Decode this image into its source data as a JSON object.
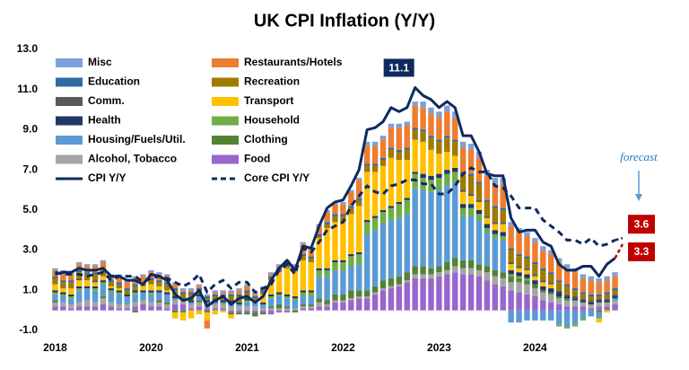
{
  "chart_data": {
    "type": "stacked-bar",
    "title": "UK CPI Inflation (Y/Y)",
    "categories": [
      "2018",
      null,
      null,
      null,
      null,
      null,
      null,
      null,
      null,
      null,
      null,
      null,
      "2020",
      null,
      null,
      null,
      null,
      null,
      null,
      null,
      null,
      null,
      null,
      null,
      "2021",
      null,
      null,
      null,
      null,
      null,
      null,
      null,
      null,
      null,
      null,
      null,
      "2022",
      null,
      null,
      null,
      null,
      null,
      null,
      null,
      null,
      null,
      null,
      null,
      "2023",
      null,
      null,
      null,
      null,
      null,
      null,
      null,
      null,
      null,
      null,
      null,
      "2024",
      null,
      null,
      null,
      null,
      null,
      null,
      null,
      null,
      null,
      null
    ],
    "ylim": [
      -1,
      13
    ],
    "yticks": [
      {
        "value": -1,
        "label": "-1.0"
      },
      {
        "value": 1,
        "label": "1.0"
      },
      {
        "value": 3,
        "label": "3.0"
      },
      {
        "value": 5,
        "label": "5.0"
      },
      {
        "value": 7,
        "label": "7.0"
      },
      {
        "value": 9,
        "label": "9.0"
      },
      {
        "value": 11,
        "label": "11.0"
      },
      {
        "value": 13,
        "label": "13.0"
      }
    ],
    "forecast_label": "forecast",
    "peak_index": 45,
    "series": [
      {
        "name": "Food",
        "color": "#9966cc",
        "values": [
          0.2,
          0.2,
          0.1,
          0.2,
          0.2,
          0.2,
          0.3,
          0.2,
          0.1,
          0.1,
          0.2,
          0.3,
          0.2,
          0.2,
          0.1,
          0.3,
          0.3,
          0.1,
          0.2,
          0.1,
          0.1,
          0.1,
          -0.1,
          -0.1,
          -0.1,
          -0.1,
          -0.1,
          -0.2,
          -0.1,
          -0.1,
          0,
          0.1,
          0.1,
          0.2,
          0.2,
          0.4,
          0.4,
          0.5,
          0.6,
          0.6,
          0.8,
          1.0,
          1.1,
          1.2,
          1.4,
          1.6,
          1.6,
          1.6,
          1.7,
          1.8,
          1.9,
          1.8,
          1.8,
          1.7,
          1.5,
          1.3,
          1.2,
          1.0,
          0.9,
          0.8,
          0.7,
          0.5,
          0.4,
          0.3,
          0.2,
          0.2,
          0.2,
          0.1,
          0.2,
          0.2,
          0.3
        ]
      },
      {
        "name": "Alcohol, Tobacco",
        "color": "#a5a5a5",
        "values": [
          0.2,
          0.2,
          0.2,
          0.2,
          0.3,
          0.2,
          0.3,
          0.2,
          0.2,
          0.2,
          0.2,
          0.2,
          0.2,
          0.2,
          0.2,
          0.2,
          0.2,
          0.2,
          0.2,
          0.2,
          0.2,
          0.2,
          0.2,
          0.2,
          0.2,
          0.2,
          0.1,
          0.1,
          0.1,
          0.1,
          0.1,
          0.1,
          0.1,
          0.2,
          0.1,
          0.1,
          0.1,
          0.1,
          0.1,
          0.1,
          0.1,
          0.1,
          0.1,
          0.1,
          0.1,
          0.2,
          0.2,
          0.2,
          0.2,
          0.2,
          0.3,
          0.3,
          0.3,
          0.3,
          0.4,
          0.4,
          0.4,
          0.4,
          0.5,
          0.5,
          0.4,
          0.4,
          0.4,
          0.3,
          0.3,
          0.3,
          0.2,
          0.2,
          0.2,
          0.2,
          0.2
        ]
      },
      {
        "name": "Clothing",
        "color": "#548235",
        "values": [
          0.1,
          0,
          0,
          0,
          0,
          0,
          0.1,
          0,
          0,
          0,
          -0.1,
          0,
          0,
          0.1,
          0.1,
          -0.1,
          -0.1,
          0,
          0.1,
          -0.1,
          0,
          0,
          -0.1,
          -0.1,
          -0.1,
          -0.2,
          -0.1,
          0.1,
          0.2,
          0.1,
          -0.1,
          0.1,
          0.1,
          0.2,
          0.2,
          0.3,
          0.3,
          0.4,
          0.3,
          0.3,
          0.3,
          0.4,
          0.4,
          0.4,
          0.4,
          0.4,
          0.4,
          0.3,
          0.3,
          0.4,
          0.4,
          0.4,
          0.4,
          0.3,
          0.3,
          0.3,
          0.3,
          0.3,
          0.2,
          0.2,
          0.2,
          0.1,
          0.1,
          0.1,
          0.1,
          0,
          0,
          0,
          -0.1,
          0,
          0
        ]
      },
      {
        "name": "Housing/Fuels/Util.",
        "color": "#5b9bd5",
        "values": [
          0.3,
          0.3,
          0.3,
          0.6,
          0.6,
          0.6,
          0.6,
          0.5,
          0.5,
          0.4,
          0.4,
          0.4,
          0.4,
          0.4,
          0.4,
          0.1,
          0,
          0.1,
          0.2,
          0.1,
          0.1,
          0.1,
          0.1,
          0.1,
          0.2,
          0.2,
          0.2,
          0.4,
          0.4,
          0.4,
          0.4,
          0.4,
          0.4,
          1.1,
          1.2,
          1.2,
          1.2,
          1.2,
          1.3,
          2.8,
          2.8,
          2.8,
          2.9,
          2.9,
          2.9,
          3.9,
          3.8,
          3.8,
          3.8,
          3.8,
          3.8,
          2.2,
          2.2,
          2.2,
          1.7,
          1.6,
          1.6,
          -0.6,
          -0.6,
          -0.5,
          -0.5,
          -0.5,
          -0.5,
          -0.7,
          -0.8,
          -0.7,
          -0.4,
          -0.3,
          -0.3,
          0,
          0.1
        ]
      },
      {
        "name": "Household",
        "color": "#70ad47",
        "values": [
          0.1,
          0.1,
          0.1,
          0.1,
          0,
          0.1,
          0.1,
          0.1,
          0.1,
          0,
          0.1,
          0,
          0.1,
          0,
          0,
          0,
          0,
          0,
          0,
          0,
          0,
          0,
          0.1,
          0,
          0.1,
          0,
          0,
          0.1,
          0.1,
          0.1,
          0.1,
          0.2,
          0.2,
          0.3,
          0.3,
          0.4,
          0.4,
          0.5,
          0.5,
          0.6,
          0.6,
          0.6,
          0.6,
          0.7,
          0.7,
          0.7,
          0.6,
          0.6,
          0.6,
          0.6,
          0.5,
          0.4,
          0.4,
          0.3,
          0.2,
          0.2,
          0.2,
          0.1,
          0.1,
          0.1,
          0,
          0,
          0,
          -0.1,
          -0.1,
          -0.1,
          -0.1,
          0,
          0,
          0,
          0
        ]
      },
      {
        "name": "Health",
        "color": "#203864",
        "values": [
          0.1,
          0.1,
          0.1,
          0.1,
          0.1,
          0.1,
          0.1,
          0.1,
          0.1,
          0.1,
          0.1,
          0.1,
          0.1,
          0.1,
          0.1,
          0.1,
          0.1,
          0.1,
          0.1,
          0.1,
          0.1,
          0.1,
          0.1,
          0.1,
          0.1,
          0.1,
          0.1,
          0.1,
          0.1,
          0.1,
          0.1,
          0.1,
          0.1,
          0.1,
          0.1,
          0.1,
          0.1,
          0.1,
          0.1,
          0.1,
          0.1,
          0.1,
          0.1,
          0.1,
          0.1,
          0.1,
          0.2,
          0.2,
          0.2,
          0.2,
          0.2,
          0.2,
          0.2,
          0.2,
          0.2,
          0.2,
          0.2,
          0.2,
          0.2,
          0.2,
          0.2,
          0.2,
          0.2,
          0.2,
          0.1,
          0.1,
          0.1,
          0.1,
          0.1,
          0.1,
          0.1
        ]
      },
      {
        "name": "Transport",
        "color": "#ffc000",
        "values": [
          0.3,
          0.2,
          0.3,
          0.3,
          0.3,
          0.2,
          0.2,
          0.1,
          0.1,
          0,
          0,
          0.2,
          0.3,
          0.2,
          0.1,
          -0.3,
          -0.4,
          -0.4,
          -0.2,
          -0.4,
          -0.2,
          -0.1,
          -0.2,
          0,
          0,
          0,
          0.4,
          0.7,
          1.0,
          1.3,
          1.3,
          1.5,
          1.4,
          1.5,
          2.0,
          1.9,
          1.9,
          2.0,
          2.3,
          2.4,
          2.2,
          2.2,
          2.4,
          2.1,
          1.9,
          1.6,
          1.6,
          1.3,
          1.0,
          0.9,
          0.6,
          0.6,
          0.4,
          0.4,
          0.3,
          0.3,
          0.4,
          0.3,
          0.2,
          0.2,
          0.2,
          0.2,
          0.2,
          0,
          0,
          0,
          0,
          0,
          -0.2,
          -0.1,
          0
        ]
      },
      {
        "name": "Comm.",
        "color": "#595959",
        "values": [
          0,
          0,
          0,
          0.1,
          0,
          0.1,
          0,
          0,
          0,
          0,
          0,
          0,
          0,
          0,
          0,
          0,
          0,
          0,
          0,
          0,
          0,
          0,
          0,
          0,
          0,
          0,
          0,
          0,
          0,
          0,
          0,
          0,
          0,
          0,
          0,
          0,
          0,
          0,
          0,
          0,
          0,
          0,
          0,
          0,
          0,
          0,
          0,
          0,
          0,
          0,
          0,
          0.1,
          0.1,
          0.1,
          0.1,
          0.1,
          0.1,
          0.1,
          0.1,
          0.1,
          0.1,
          0.1,
          0.1,
          0.1,
          0.1,
          0.1,
          0.1,
          0.1,
          0.1,
          0.1,
          0.1
        ]
      },
      {
        "name": "Recreation",
        "color": "#a07a00",
        "values": [
          0.3,
          0.3,
          0.3,
          0.3,
          0.3,
          0.3,
          0.3,
          0.2,
          0.2,
          0.2,
          0.2,
          0.1,
          0.2,
          0.2,
          0.3,
          0.3,
          0.2,
          0.3,
          0.2,
          0.1,
          0.2,
          0.2,
          0.2,
          0.3,
          0.3,
          0.1,
          0.1,
          0.1,
          0.1,
          0.1,
          0,
          0.2,
          0.2,
          0.1,
          0.2,
          0.3,
          0.3,
          0.3,
          0.3,
          0.3,
          0.3,
          0.3,
          0.4,
          0.4,
          0.5,
          0.5,
          0.5,
          0.6,
          0.6,
          0.7,
          0.7,
          0.8,
          0.9,
          0.8,
          0.7,
          0.7,
          0.6,
          0.6,
          0.5,
          0.5,
          0.5,
          0.5,
          0.4,
          0.4,
          0.4,
          0.3,
          0.2,
          0.2,
          0.1,
          0.2,
          0.2
        ]
      },
      {
        "name": "Education",
        "color": "#2e6aa6",
        "values": [
          0.1,
          0.1,
          0.1,
          0.1,
          0.1,
          0.1,
          0.1,
          0.1,
          0.1,
          0.1,
          0.1,
          0.1,
          0.1,
          0.1,
          0.1,
          0.1,
          0.1,
          0.1,
          0.1,
          0.1,
          0.1,
          0.1,
          0.1,
          0.1,
          0.1,
          0.1,
          0.1,
          0.1,
          0.1,
          0.1,
          0.1,
          0.1,
          0.1,
          0.1,
          0.1,
          0.1,
          0.1,
          0.1,
          0.1,
          0.1,
          0.1,
          0.1,
          0.1,
          0.1,
          0.1,
          0.1,
          0.1,
          0.1,
          0.1,
          0.1,
          0.1,
          0.1,
          0.1,
          0.1,
          0.1,
          0.1,
          0.1,
          0.1,
          0.1,
          0.1,
          0.1,
          0.1,
          0.1,
          0.1,
          0.1,
          0.1,
          0.1,
          0.1,
          0.1,
          0.1,
          0.1
        ]
      },
      {
        "name": "Restaurants/Hotels",
        "color": "#ed7d31",
        "values": [
          0.3,
          0.3,
          0.3,
          0.3,
          0.3,
          0.3,
          0.3,
          0.2,
          0.3,
          0.3,
          0.3,
          0.3,
          0.3,
          0.3,
          0.3,
          0.2,
          0.1,
          0.1,
          0.1,
          -0.4,
          0.1,
          0.1,
          0.1,
          0.2,
          0.2,
          0.1,
          0.1,
          0.1,
          0.1,
          0.1,
          0.1,
          0.5,
          0.3,
          0.4,
          0.5,
          0.5,
          0.5,
          0.7,
          0.9,
          0.9,
          0.9,
          0.9,
          1.0,
          1.1,
          1.1,
          1.1,
          1.1,
          1.1,
          1.1,
          1.2,
          1.1,
          1.2,
          1.2,
          1.2,
          1.2,
          1.1,
          1.2,
          1.1,
          1.1,
          1.0,
          1.0,
          0.9,
          0.9,
          0.9,
          0.8,
          0.8,
          0.7,
          0.7,
          0.6,
          0.6,
          0.6
        ]
      },
      {
        "name": "Misc",
        "color": "#7f9fd8",
        "values": [
          0.1,
          0.2,
          0.1,
          0.1,
          0.1,
          0.1,
          0.1,
          0.1,
          0.1,
          0.1,
          0.1,
          0.1,
          0.1,
          0.1,
          0.1,
          0.1,
          0.1,
          0.1,
          0.1,
          0.1,
          0.1,
          0.1,
          0.1,
          0.1,
          0.1,
          0.1,
          0.1,
          0.1,
          0.1,
          0.1,
          0.1,
          0.1,
          0.1,
          0.1,
          0.1,
          0.1,
          0.1,
          0.1,
          0.1,
          0.2,
          0.2,
          0.2,
          0.2,
          0.2,
          0.2,
          0.2,
          0.3,
          0.3,
          0.3,
          0.3,
          0.3,
          0.3,
          0.3,
          0.3,
          0.3,
          0.3,
          0.3,
          0.2,
          0.2,
          0.2,
          0.2,
          0.2,
          0.2,
          0.2,
          0.2,
          0.2,
          0.2,
          0.2,
          0.2,
          0.2,
          0.2
        ]
      },
      {
        "name": "CPI Y/Y",
        "type": "line",
        "color": "#0e2a5e",
        "forecast": 3.3,
        "forecast_color": "#c00000",
        "values": [
          1.8,
          1.9,
          1.9,
          2.1,
          2.0,
          2.0,
          2.1,
          1.7,
          1.7,
          1.5,
          1.5,
          1.3,
          1.8,
          1.7,
          1.5,
          0.8,
          0.5,
          0.6,
          1.0,
          0.2,
          0.5,
          0.7,
          0.3,
          0.6,
          0.7,
          0.4,
          0.7,
          1.5,
          2.1,
          2.5,
          2.0,
          3.2,
          3.1,
          4.2,
          5.1,
          5.4,
          5.5,
          6.2,
          7.0,
          9.0,
          9.1,
          9.4,
          10.1,
          9.9,
          10.1,
          11.1,
          10.7,
          10.5,
          10.1,
          10.4,
          10.1,
          8.7,
          8.7,
          7.9,
          6.8,
          6.7,
          6.7,
          4.6,
          3.9,
          4.0,
          4.0,
          3.4,
          3.2,
          2.3,
          2.0,
          2.0,
          2.2,
          2.2,
          1.7,
          2.3,
          2.6
        ]
      },
      {
        "name": "Core CPI Y/Y",
        "type": "line",
        "line_style": "dashed",
        "color": "#0e2a5e",
        "forecast": 3.6,
        "forecast_color": "#c00000",
        "values": [
          1.9,
          1.8,
          1.8,
          1.8,
          1.7,
          1.8,
          1.9,
          1.5,
          1.7,
          1.7,
          1.7,
          1.4,
          1.6,
          1.7,
          1.6,
          1.4,
          1.2,
          1.4,
          1.8,
          0.9,
          1.3,
          1.5,
          1.1,
          1.4,
          1.4,
          0.9,
          1.1,
          1.3,
          2.0,
          2.3,
          1.8,
          3.1,
          2.9,
          3.4,
          4.0,
          4.2,
          4.4,
          5.2,
          5.7,
          6.2,
          5.9,
          5.8,
          6.2,
          6.3,
          6.5,
          6.5,
          6.3,
          6.3,
          5.8,
          5.8,
          6.2,
          6.8,
          7.1,
          6.9,
          6.9,
          6.2,
          6.1,
          5.7,
          5.1,
          5.1,
          5.1,
          4.5,
          4.2,
          3.9,
          3.5,
          3.5,
          3.3,
          3.6,
          3.2,
          3.3,
          3.5
        ]
      }
    ]
  }
}
